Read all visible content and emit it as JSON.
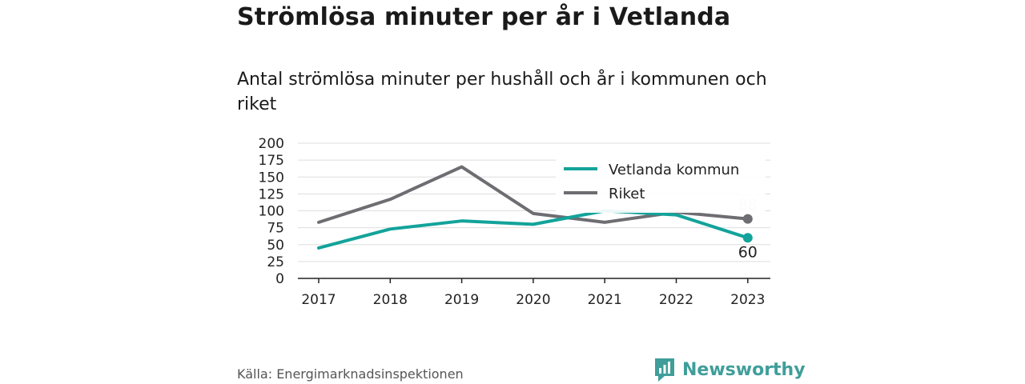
{
  "title": "Strömlösa minuter per år i Vetlanda",
  "subtitle": "Antal strömlösa minuter per hushåll och år i kommunen och riket",
  "source": "Källa: Energimarknadsinspektionen",
  "brand": {
    "name": "Newsworthy",
    "icon": "newsworthy-logo-icon",
    "color": "#3f9e9a"
  },
  "chart_data": {
    "type": "line",
    "x": [
      2017,
      2018,
      2019,
      2020,
      2021,
      2022,
      2023
    ],
    "ylim": [
      0,
      200
    ],
    "yticks": [
      0,
      25,
      50,
      75,
      100,
      125,
      150,
      175,
      200
    ],
    "grid": true,
    "legend_position": "top-right",
    "series": [
      {
        "name": "Vetlanda kommun",
        "color": "#13a39a",
        "values": [
          45,
          73,
          85,
          80,
          100,
          94,
          60
        ],
        "end_label": "60"
      },
      {
        "name": "Riket",
        "color": "#6d6d72",
        "values": [
          83,
          117,
          165,
          96,
          83,
          98,
          88
        ],
        "end_label": "88"
      }
    ]
  }
}
